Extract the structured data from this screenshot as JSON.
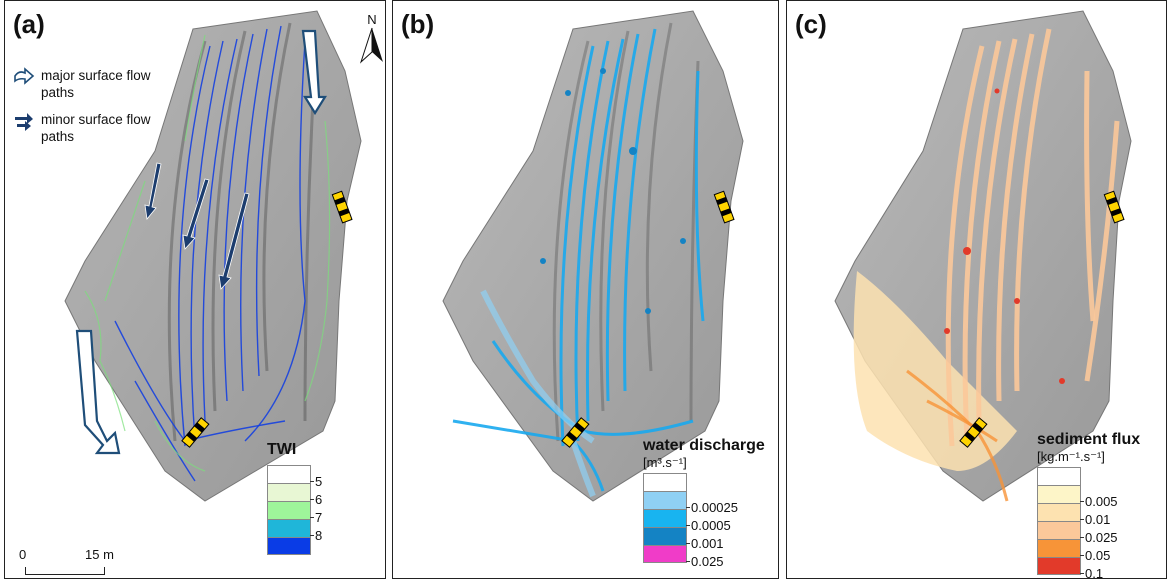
{
  "panels": [
    {
      "label": "(a)",
      "north_label": "N",
      "flow_legend": {
        "major": "major surface flow paths",
        "minor": "minor surface flow paths"
      },
      "legend": {
        "title": "TWI",
        "unit": "",
        "classes": [
          {
            "label": "5",
            "color": "#ffffff"
          },
          {
            "label": "6",
            "color": "#e8f7d4"
          },
          {
            "label": "7",
            "color": "#9ef59a"
          },
          {
            "label": "8",
            "color": "#1fb6d9"
          },
          {
            "label": "",
            "color": "#0a3ce6"
          }
        ]
      },
      "scale_bar": {
        "start": "0",
        "end": "15 m"
      }
    },
    {
      "label": "(b)",
      "legend": {
        "title": "water discharge",
        "unit": "[m³.s⁻¹]",
        "classes": [
          {
            "label": "",
            "color": "#ffffff"
          },
          {
            "label": "0.00025",
            "color": "#8fd0f4"
          },
          {
            "label": "0.0005",
            "color": "#18b4f0"
          },
          {
            "label": "0.001",
            "color": "#1483c4"
          },
          {
            "label": "0.025",
            "color": "#f03cc8"
          }
        ]
      }
    },
    {
      "label": "(c)",
      "legend": {
        "title": "sediment flux",
        "unit": "[kg.m⁻¹.s⁻¹]",
        "classes": [
          {
            "label": "",
            "color": "#ffffff"
          },
          {
            "label": "0.005",
            "color": "#fdf5c8"
          },
          {
            "label": "0.01",
            "color": "#fde2b0"
          },
          {
            "label": "0.025",
            "color": "#fbc89a"
          },
          {
            "label": "0.05",
            "color": "#f79438"
          },
          {
            "label": "0.1",
            "color": "#e23a2a"
          }
        ]
      }
    }
  ],
  "colors": {
    "terrain": "#a9a9a9",
    "terrain_dark": "#8d8d8d",
    "major_arrow_fill": "#ffffff",
    "major_arrow_stroke": "#1f4e79",
    "minor_arrow": "#1c3d6e",
    "culvert_yellow": "#ffd400"
  }
}
